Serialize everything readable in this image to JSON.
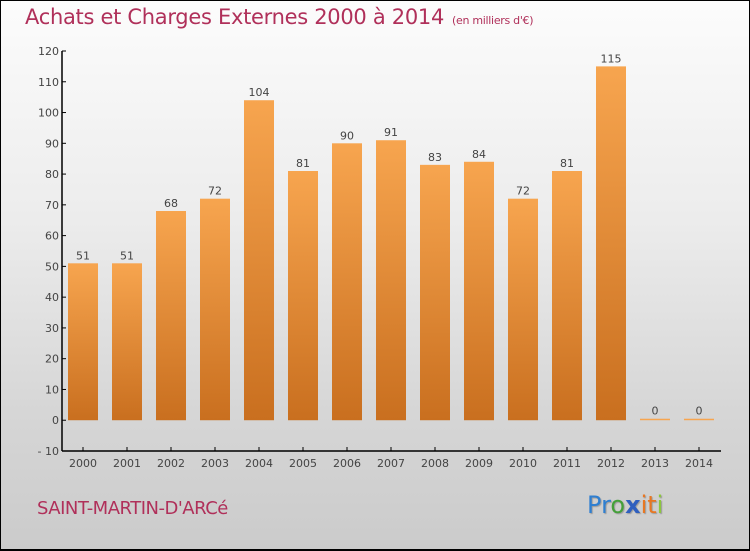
{
  "chart_data": {
    "type": "bar",
    "title": "Achats et Charges Externes 2000 à 2014",
    "subtitle": "(en milliers d'€)",
    "categories": [
      "2000",
      "2001",
      "2002",
      "2003",
      "2004",
      "2005",
      "2006",
      "2007",
      "2008",
      "2009",
      "2010",
      "2011",
      "2012",
      "2013",
      "2014"
    ],
    "values": [
      51,
      51,
      68,
      72,
      104,
      81,
      90,
      91,
      83,
      84,
      72,
      81,
      115,
      0,
      0
    ],
    "xlabel": "",
    "ylabel": "",
    "ylim": [
      -10,
      120
    ],
    "yticks": [
      -10,
      0,
      10,
      20,
      30,
      40,
      50,
      60,
      70,
      80,
      90,
      100,
      110,
      120
    ],
    "grid": false,
    "legend": "none",
    "colors": {
      "bar_top": "#f7a54f",
      "bar_bottom": "#c96f1f",
      "text": "#b0305a"
    }
  },
  "footer": {
    "commune": "SAINT-MARTIN-D'ARCé",
    "logo": [
      "P",
      "r",
      "o",
      "x",
      "i",
      "t",
      "i"
    ],
    "logo_colors": [
      "#2f7fd1",
      "#2f7fd1",
      "#44a03a",
      "#2f5fbf",
      "#e87722",
      "#e87722",
      "#8cc63f"
    ]
  }
}
